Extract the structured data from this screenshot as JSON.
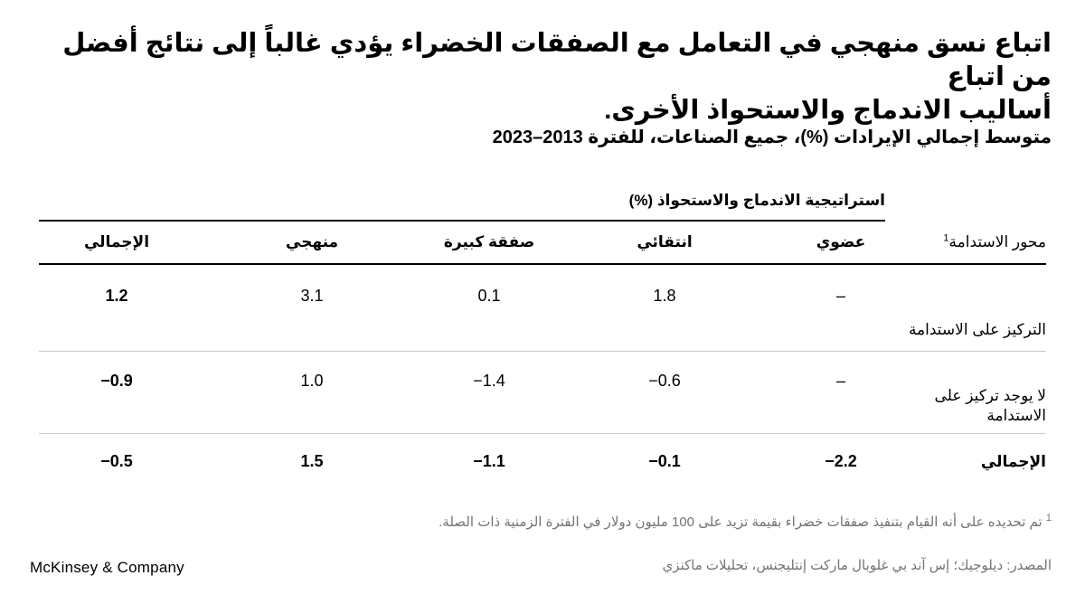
{
  "page": {
    "title_line1": "اتباع نسق منهجي في التعامل مع الصفقات الخضراء يؤدي غالباً إلى نتائج أفضل من اتباع",
    "title_line2": "أساليب الاندماج والاستحواذ الأخرى.",
    "subtitle": "متوسط إجمالي الإيرادات (%)، جميع الصناعات، للفترة 2013–2023",
    "footnote_marker": "1",
    "footnote": "تم تحديده على أنه القيام بتنفيذ صفقات خضراء بقيمة تزيد على 100 مليون دولار في الفترة الزمنية ذات الصلة.",
    "source": "المصدر: ديلوجيك؛ إس آند بي غلوبال ماركت إنتليجنس، تحليلات ماكنزي",
    "logo": "McKinsey & Company"
  },
  "chart_data": {
    "type": "table",
    "title": "اتباع نسق منهجي في التعامل مع الصفقات الخضراء يؤدي غالباً إلى نتائج أفضل من اتباع أساليب الاندماج والاستحواذ الأخرى.",
    "units_label": "متوسط إجمالي الإيرادات (%)، جميع الصناعات، للفترة 2013–2023",
    "group_header": "استراتيجية الاندماج والاستحواذ (%)",
    "row_dimension": "محور الاستدامة",
    "row_dimension_sup": "1",
    "columns": [
      "عضوي",
      "انتقائي",
      "صفقة كبيرة",
      "منهجي",
      "الإجمالي"
    ],
    "rows": [
      {
        "label": "التركيز على الاستدامة",
        "display": [
          "–",
          "1.8",
          "0.1",
          "3.1",
          "1.2"
        ],
        "values": [
          null,
          1.8,
          0.1,
          3.1,
          1.2
        ]
      },
      {
        "label": "لا يوجد تركيز على الاستدامة",
        "display": [
          "–",
          "−0.6",
          "−1.4",
          "1.0",
          "−0.9"
        ],
        "values": [
          null,
          -0.6,
          -1.4,
          1.0,
          -0.9
        ]
      },
      {
        "label": "الإجمالي",
        "display": [
          "−2.2",
          "−0.1",
          "−1.1",
          "1.5",
          "−0.5"
        ],
        "values": [
          -2.2,
          -0.1,
          -1.1,
          1.5,
          -0.5
        ]
      }
    ],
    "colors": {
      "text": "#000000",
      "muted": "#737373",
      "divider": "#cccccc"
    }
  }
}
